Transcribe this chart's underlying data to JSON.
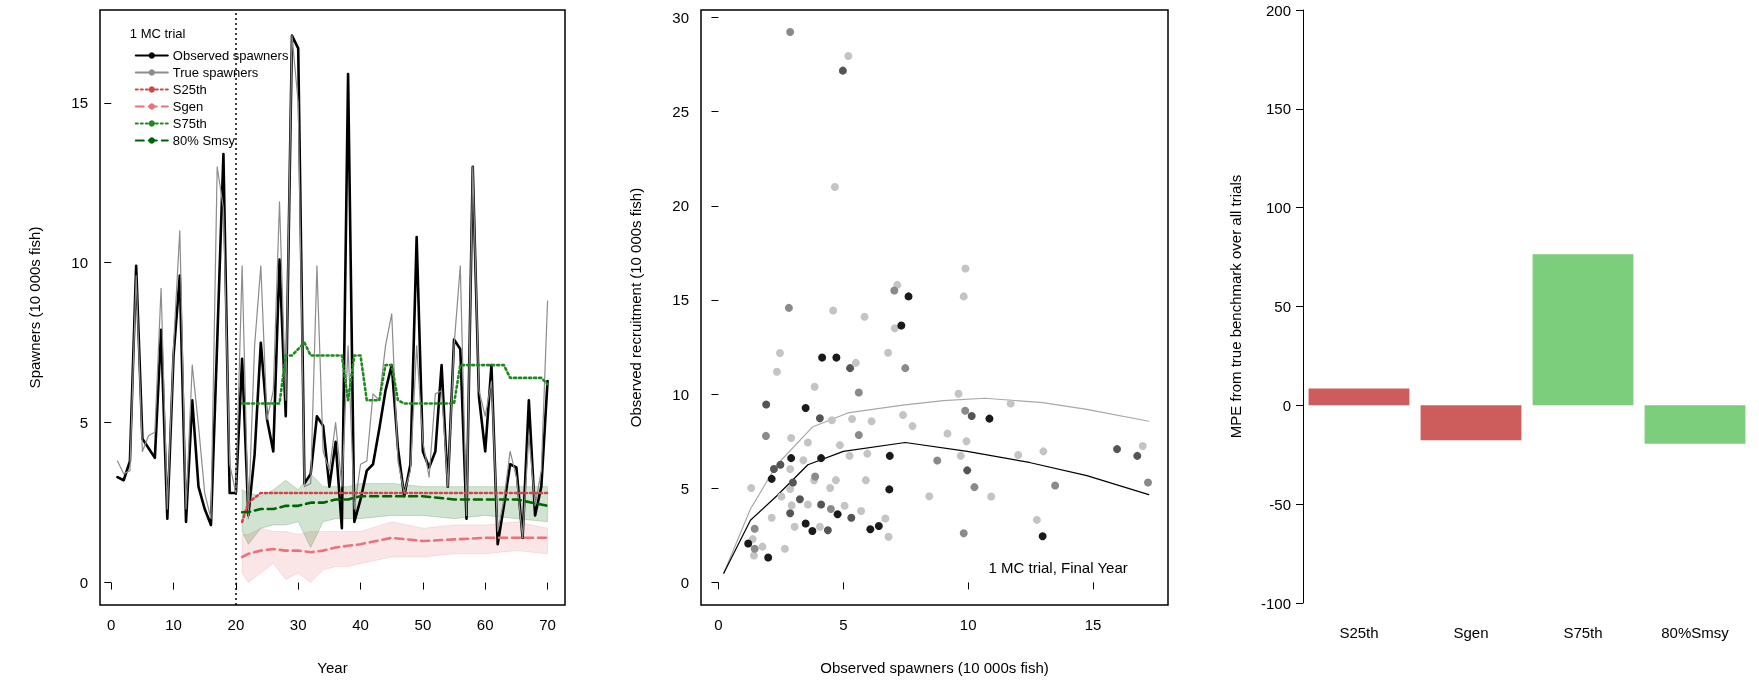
{
  "chart_data": [
    {
      "type": "line",
      "xlabel": "Year",
      "ylabel": "Spawners (10 000s fish)",
      "legend_title": "1 MC trial",
      "legend": "top left",
      "grid": false,
      "marker": "none",
      "xlim": [
        -1.8,
        72.8
      ],
      "ylim": [
        -0.7,
        17.9
      ],
      "xticks": [
        0,
        10,
        20,
        30,
        40,
        50,
        60,
        70
      ],
      "yticks": [
        0,
        5,
        10,
        15
      ],
      "x": [
        1,
        2,
        3,
        4,
        5,
        6,
        7,
        8,
        9,
        10,
        11,
        12,
        13,
        14,
        15,
        16,
        17,
        18,
        19,
        20,
        21,
        22,
        23,
        24,
        25,
        26,
        27,
        28,
        29,
        30,
        31,
        32,
        33,
        34,
        35,
        36,
        37,
        38,
        39,
        40,
        41,
        42,
        43,
        44,
        45,
        46,
        47,
        48,
        49,
        50,
        51,
        52,
        53,
        54,
        55,
        56,
        57,
        58,
        59,
        60,
        61,
        62,
        63,
        64,
        65,
        66,
        67,
        68,
        69,
        70
      ],
      "ref_lines": [
        {
          "axis": "x",
          "value": 20,
          "color": "#000000",
          "line_style": "dotted"
        }
      ],
      "series": [
        {
          "name": "Observed spawners",
          "color": "#000000",
          "line_style": "solid",
          "values": [
            3.3,
            3.2,
            3.8,
            9.9,
            4.5,
            4.2,
            3.9,
            7.9,
            2.0,
            7.1,
            9.6,
            1.9,
            5.7,
            3.0,
            2.3,
            1.8,
            7.5,
            13.4,
            2.8,
            2.8,
            7.0,
            2.1,
            4.0,
            7.5,
            5.1,
            4.1,
            10.1,
            5.2,
            17.1,
            16.7,
            3.1,
            3.4,
            5.2,
            4.9,
            3.0,
            4.4,
            1.7,
            15.9,
            1.9,
            2.6,
            3.5,
            3.7,
            4.8,
            6.0,
            6.8,
            4.2,
            2.7,
            3.7,
            10.8,
            4.1,
            3.6,
            4.1,
            6.8,
            3.0,
            7.6,
            7.3,
            2.0,
            13.0,
            5.8,
            4.1,
            6.8,
            1.2,
            2.4,
            3.7,
            3.6,
            1.4,
            5.7,
            2.1,
            3.0,
            6.3
          ]
        },
        {
          "name": "True spawners",
          "color": "#8c8c8c",
          "line_style": "solid",
          "values": [
            3.8,
            3.4,
            3.5,
            9.6,
            4.1,
            4.6,
            4.7,
            9.2,
            2.3,
            7.4,
            11.0,
            2.3,
            6.8,
            4.9,
            2.8,
            2.0,
            13.0,
            11.7,
            3.7,
            2.8,
            9.9,
            2.0,
            7.4,
            9.9,
            5.1,
            6.0,
            11.9,
            5.7,
            17.1,
            15.0,
            3.0,
            3.1,
            9.9,
            4.1,
            3.5,
            5.0,
            3.0,
            7.4,
            2.3,
            3.7,
            3.8,
            5.9,
            5.7,
            7.4,
            8.4,
            3.8,
            2.8,
            3.5,
            7.4,
            4.4,
            3.3,
            5.9,
            6.0,
            3.0,
            7.4,
            9.9,
            2.1,
            13.0,
            6.0,
            5.2,
            6.3,
            1.6,
            2.6,
            4.1,
            3.3,
            1.4,
            4.6,
            2.4,
            3.5,
            8.8
          ]
        },
        {
          "name": "S25th",
          "color": "#d0474a",
          "line_style": "dotted",
          "x": [
            21,
            22,
            24,
            70
          ],
          "values": [
            1.9,
            2.5,
            2.8,
            2.8
          ]
        },
        {
          "name": "Sgen",
          "color": "#e8737a",
          "line_style": "dashed",
          "x": [
            21,
            22,
            24,
            26,
            28,
            30,
            32,
            34,
            36,
            38,
            40,
            45,
            50,
            55,
            60,
            65,
            70
          ],
          "values": [
            0.8,
            0.9,
            1.0,
            1.05,
            1.0,
            1.0,
            0.95,
            1.0,
            1.1,
            1.15,
            1.2,
            1.4,
            1.3,
            1.35,
            1.4,
            1.4,
            1.4
          ],
          "lower": [
            0.3,
            0.0,
            0.3,
            0.6,
            0.1,
            0.3,
            0.0,
            0.4,
            0.5,
            0.5,
            0.6,
            0.8,
            0.8,
            0.9,
            0.9,
            1.0,
            0.9
          ],
          "upper": [
            1.5,
            1.5,
            1.7,
            1.6,
            1.6,
            1.5,
            1.6,
            1.6,
            1.6,
            1.6,
            1.6,
            1.9,
            1.7,
            1.8,
            1.8,
            1.9,
            1.7
          ]
        },
        {
          "name": "S75th",
          "color": "#1f8a1f",
          "line_style": "dotted",
          "x": [
            21,
            27,
            28,
            29,
            31,
            32,
            37,
            38,
            39,
            40,
            41,
            43,
            44,
            45,
            46,
            47,
            55,
            56,
            63,
            64,
            69,
            70
          ],
          "values": [
            5.6,
            5.6,
            7.1,
            7.1,
            7.5,
            7.1,
            7.1,
            5.7,
            7.1,
            7.1,
            5.7,
            5.7,
            6.8,
            6.8,
            5.7,
            5.6,
            5.6,
            6.8,
            6.8,
            6.4,
            6.4,
            6.2
          ]
        },
        {
          "name": "80% Smsy",
          "color": "#006400",
          "line_style": "dashed",
          "x": [
            21,
            22,
            24,
            26,
            28,
            30,
            32,
            34,
            36,
            38,
            40,
            45,
            50,
            55,
            60,
            65,
            70
          ],
          "values": [
            2.2,
            2.2,
            2.3,
            2.3,
            2.4,
            2.4,
            2.5,
            2.5,
            2.6,
            2.6,
            2.7,
            2.7,
            2.7,
            2.6,
            2.6,
            2.6,
            2.4
          ],
          "lower": [
            1.6,
            1.2,
            1.7,
            1.8,
            1.8,
            1.9,
            1.1,
            1.9,
            2.0,
            2.0,
            2.0,
            2.1,
            2.1,
            2.0,
            2.1,
            2.0,
            1.9
          ],
          "upper": [
            2.9,
            2.8,
            2.7,
            2.9,
            3.2,
            2.9,
            3.4,
            3.0,
            3.0,
            3.0,
            3.1,
            3.1,
            3.0,
            3.0,
            3.0,
            3.0,
            3.0
          ]
        }
      ]
    },
    {
      "type": "scatter",
      "xlabel": "Observed spawners (10 000s fish)",
      "ylabel": "Observed recruitment (10 000s fish)",
      "grid": false,
      "marker": "circle",
      "xlim": [
        -0.7,
        18
      ],
      "ylim": [
        -1.2,
        30.4
      ],
      "xticks": [
        0,
        5,
        10,
        15
      ],
      "yticks": [
        0,
        5,
        10,
        15,
        20,
        25,
        30
      ],
      "annotations": [
        "1 MC trial, Final Year"
      ],
      "series": [
        {
          "color": "#c4c4c4",
          "x": [
            5.2,
            4.66,
            9.89,
            9.82,
            7.16,
            4.59,
            5.85,
            7.06,
            6.79,
            5.5,
            2.46,
            2.34,
            3.85,
            9.61,
            11.7,
            7.39,
            4.54,
            5.35,
            6.13,
            7.77,
            9.17,
            2.91,
            3.58,
            9.93,
            4.86,
            16.99,
            12.0,
            13.01,
            9.7,
            5.25,
            5.96,
            3.4,
            2.87,
            3.83,
            4.7,
            5.9,
            1.31,
            2.87,
            4.47,
            3.58,
            5.05,
            5.71,
            8.44,
            10.92,
            2.13,
            3.05,
            4.06,
            6.68,
            12.75,
            2.66,
            6.81,
            1.76,
            1.42,
            1.37,
            2.52,
            2.93
          ],
          "values": [
            27.96,
            21.0,
            16.67,
            15.19,
            15.8,
            14.44,
            14.11,
            13.5,
            12.2,
            11.66,
            12.18,
            11.19,
            10.39,
            10.02,
            9.5,
            8.89,
            8.61,
            8.68,
            8.56,
            8.3,
            7.9,
            7.67,
            7.43,
            7.5,
            7.29,
            7.24,
            6.77,
            6.96,
            6.72,
            6.72,
            6.84,
            6.49,
            6.02,
            5.43,
            5.43,
            5.43,
            5.01,
            4.96,
            5.01,
            4.14,
            4.07,
            3.79,
            4.58,
            4.56,
            3.43,
            2.96,
            2.96,
            3.39,
            3.32,
            1.79,
            2.42,
            1.9,
            1.43,
            2.3,
            4.56,
            4.09
          ]
        },
        {
          "color": "#8a8a8a",
          "x": [
            2.87,
            2.82,
            1.9,
            7.04,
            7.48,
            5.62,
            5.62,
            8.76,
            9.82,
            10.25,
            13.48,
            17.2,
            4.5,
            1.45,
            1.45,
            3.87,
            9.88
          ],
          "values": [
            29.23,
            14.58,
            7.78,
            15.5,
            11.38,
            10.09,
            7.83,
            6.47,
            2.61,
            5.06,
            5.15,
            5.31,
            3.9,
            1.79,
            2.85,
            5.62,
            9.12
          ]
        },
        {
          "color": "#555555",
          "x": [
            1.91,
            2.48,
            2.22,
            2.87,
            3.26,
            4.06,
            4.11,
            4.38,
            5.27,
            5.32,
            9.96,
            10.14,
            15.96,
            16.77,
            4.98,
            2.98
          ],
          "values": [
            9.45,
            6.25,
            6.02,
            3.67,
            4.42,
            8.72,
            4.14,
            2.77,
            11.38,
            3.43,
            5.95,
            8.84,
            7.08,
            6.72,
            27.18,
            5.31
          ]
        },
        {
          "color": "#1a1a1a",
          "x": [
            1.19,
            1.99,
            2.13,
            3.49,
            3.76,
            4.15,
            4.72,
            4.11,
            4.77,
            6.08,
            6.42,
            6.86,
            6.84,
            7.32,
            7.61,
            10.85,
            12.98,
            3.49,
            2.91
          ],
          "values": [
            2.07,
            1.32,
            5.5,
            3.13,
            2.73,
            11.94,
            11.94,
            6.6,
            3.62,
            2.82,
            3.0,
            6.72,
            4.94,
            13.64,
            15.19,
            8.7,
            2.45,
            9.26,
            6.6
          ]
        },
        {
          "type": "line",
          "marker": "none",
          "color": "#a8a8a8",
          "x": [
            0.21,
            1.28,
            2.34,
            3.76,
            5.18,
            7.3,
            9.0,
            10.67,
            12.98,
            14.75,
            17.23
          ],
          "values": [
            0.49,
            3.9,
            6.25,
            8.25,
            9.0,
            9.4,
            9.65,
            9.78,
            9.55,
            9.19,
            8.56
          ]
        },
        {
          "type": "line",
          "marker": "none",
          "color": "#000000",
          "x": [
            0.21,
            1.28,
            2.34,
            3.58,
            5.0,
            7.48,
            9.96,
            12.45,
            14.75,
            17.23
          ],
          "values": [
            0.49,
            3.3,
            4.6,
            6.25,
            6.96,
            7.43,
            6.96,
            6.37,
            5.67,
            4.66
          ]
        }
      ]
    },
    {
      "type": "bar",
      "ylabel": "MPE from true benchmark over all trials",
      "grid": false,
      "categories": [
        "S25th",
        "Sgen",
        "S75th",
        "80%Smsy"
      ],
      "values": [
        8.5,
        -17.7,
        76.4,
        -19.4
      ],
      "colors": [
        "#cd5c5c",
        "#cd5c5c",
        "#7ccd7c",
        "#7ccd7c"
      ],
      "ylim": [
        -100,
        200
      ],
      "yticks": [
        -100,
        -50,
        0,
        50,
        100,
        150,
        200
      ]
    }
  ]
}
